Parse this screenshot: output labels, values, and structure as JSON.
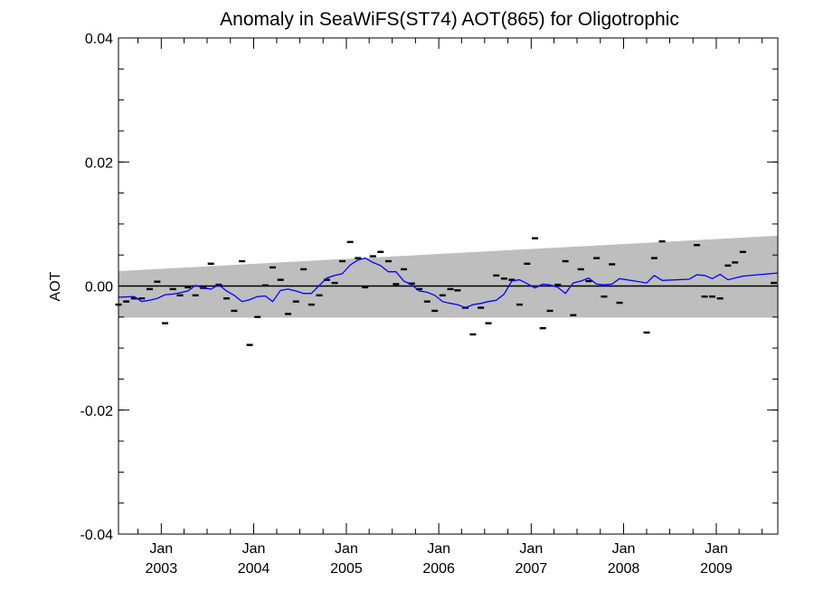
{
  "chart_data": {
    "type": "scatter",
    "title": "Anomaly in SeaWiFS(ST74) AOT(865) for Oligotrophic",
    "xlabel": "",
    "ylabel": "AOT",
    "ylim": [
      -0.04,
      0.04
    ],
    "yticks": [
      "0.04",
      "0.02",
      "0.00",
      "-0.02",
      "-0.04"
    ],
    "xlim": [
      "2002-07-16",
      "2009-09-01"
    ],
    "xticks": [
      {
        "date": "2003-01-01",
        "month": "Jan",
        "year": "2003"
      },
      {
        "date": "2004-01-01",
        "month": "Jan",
        "year": "2004"
      },
      {
        "date": "2005-01-01",
        "month": "Jan",
        "year": "2005"
      },
      {
        "date": "2006-01-01",
        "month": "Jan",
        "year": "2006"
      },
      {
        "date": "2007-01-01",
        "month": "Jan",
        "year": "2007"
      },
      {
        "date": "2008-01-01",
        "month": "Jan",
        "year": "2008"
      },
      {
        "date": "2009-01-01",
        "month": "Jan",
        "year": "2009"
      }
    ],
    "grid": false,
    "reference_line": 0.0,
    "band": {
      "color": "#bebebe",
      "x": [
        "2002-07-16",
        "2009-09-01"
      ],
      "upper": [
        0.0024,
        0.0081
      ],
      "lower": [
        -0.0051,
        -0.0051
      ]
    },
    "series": [
      {
        "color": "#000000",
        "marker": "dash",
        "points": [
          {
            "x": "2002-07-16",
            "y": -0.003
          },
          {
            "x": "2002-08-16",
            "y": -0.0025
          },
          {
            "x": "2002-09-16",
            "y": -0.002
          },
          {
            "x": "2002-10-16",
            "y": -0.002
          },
          {
            "x": "2002-11-16",
            "y": -0.0005
          },
          {
            "x": "2002-12-16",
            "y": 0.0007
          },
          {
            "x": "2003-01-16",
            "y": -0.006
          },
          {
            "x": "2003-02-16",
            "y": -0.0005
          },
          {
            "x": "2003-03-16",
            "y": -0.0015
          },
          {
            "x": "2003-04-16",
            "y": -0.0002
          },
          {
            "x": "2003-05-16",
            "y": -0.0015
          },
          {
            "x": "2003-06-16",
            "y": -0.0003
          },
          {
            "x": "2003-07-16",
            "y": 0.0036
          },
          {
            "x": "2003-08-16",
            "y": 0.0002
          },
          {
            "x": "2003-09-16",
            "y": -0.002
          },
          {
            "x": "2003-10-16",
            "y": -0.004
          },
          {
            "x": "2003-11-16",
            "y": 0.004
          },
          {
            "x": "2003-12-16",
            "y": -0.0095
          },
          {
            "x": "2004-01-16",
            "y": -0.005
          },
          {
            "x": "2004-02-16",
            "y": 0.0001
          },
          {
            "x": "2004-03-16",
            "y": 0.003
          },
          {
            "x": "2004-04-16",
            "y": 0.001
          },
          {
            "x": "2004-05-16",
            "y": -0.0045
          },
          {
            "x": "2004-06-16",
            "y": -0.0025
          },
          {
            "x": "2004-07-16",
            "y": 0.0027
          },
          {
            "x": "2004-08-16",
            "y": -0.003
          },
          {
            "x": "2004-09-16",
            "y": -0.0015
          },
          {
            "x": "2004-10-16",
            "y": 0.001
          },
          {
            "x": "2004-11-16",
            "y": 0.0005
          },
          {
            "x": "2004-12-16",
            "y": 0.004
          },
          {
            "x": "2005-01-16",
            "y": 0.0071
          },
          {
            "x": "2005-02-16",
            "y": 0.0045
          },
          {
            "x": "2005-03-16",
            "y": -0.0002
          },
          {
            "x": "2005-04-16",
            "y": 0.0048
          },
          {
            "x": "2005-05-16",
            "y": 0.0055
          },
          {
            "x": "2005-06-16",
            "y": 0.004
          },
          {
            "x": "2005-07-16",
            "y": 0.0003
          },
          {
            "x": "2005-08-16",
            "y": 0.0027
          },
          {
            "x": "2005-09-16",
            "y": 0.0004
          },
          {
            "x": "2005-10-16",
            "y": -0.0005
          },
          {
            "x": "2005-11-16",
            "y": -0.0025
          },
          {
            "x": "2005-12-16",
            "y": -0.004
          },
          {
            "x": "2006-01-16",
            "y": -0.0015
          },
          {
            "x": "2006-02-16",
            "y": -0.0005
          },
          {
            "x": "2006-03-16",
            "y": -0.0007
          },
          {
            "x": "2006-04-16",
            "y": -0.0035
          },
          {
            "x": "2006-05-16",
            "y": -0.0078
          },
          {
            "x": "2006-06-16",
            "y": -0.0035
          },
          {
            "x": "2006-07-16",
            "y": -0.006
          },
          {
            "x": "2006-08-16",
            "y": 0.0017
          },
          {
            "x": "2006-09-16",
            "y": 0.0012
          },
          {
            "x": "2006-10-16",
            "y": 0.001
          },
          {
            "x": "2006-11-16",
            "y": -0.003
          },
          {
            "x": "2006-12-16",
            "y": 0.0036
          },
          {
            "x": "2007-01-16",
            "y": 0.0077
          },
          {
            "x": "2007-02-16",
            "y": -0.0068
          },
          {
            "x": "2007-03-16",
            "y": -0.004
          },
          {
            "x": "2007-04-16",
            "y": 0.0002
          },
          {
            "x": "2007-05-16",
            "y": 0.004
          },
          {
            "x": "2007-06-16",
            "y": -0.0047
          },
          {
            "x": "2007-07-16",
            "y": 0.0027
          },
          {
            "x": "2007-08-16",
            "y": 0.0008
          },
          {
            "x": "2007-09-16",
            "y": 0.0045
          },
          {
            "x": "2007-10-16",
            "y": -0.0017
          },
          {
            "x": "2007-11-16",
            "y": 0.0035
          },
          {
            "x": "2007-12-16",
            "y": -0.0027
          },
          {
            "x": "2008-04-01",
            "y": -0.0075
          },
          {
            "x": "2008-05-01",
            "y": 0.0045
          },
          {
            "x": "2008-06-01",
            "y": 0.0072
          },
          {
            "x": "2008-10-16",
            "y": 0.0066
          },
          {
            "x": "2008-11-16",
            "y": -0.0017
          },
          {
            "x": "2008-12-16",
            "y": -0.0017
          },
          {
            "x": "2009-01-16",
            "y": -0.002
          },
          {
            "x": "2009-02-16",
            "y": 0.0033
          },
          {
            "x": "2009-03-16",
            "y": 0.0038
          },
          {
            "x": "2009-04-16",
            "y": 0.0055
          },
          {
            "x": "2009-08-16",
            "y": 0.0005
          }
        ]
      },
      {
        "color": "#0000ff",
        "marker": "line",
        "points": [
          {
            "x": "2002-07-16",
            "y": -0.0018
          },
          {
            "x": "2002-09-16",
            "y": -0.0017
          },
          {
            "x": "2002-10-16",
            "y": -0.0025
          },
          {
            "x": "2002-11-16",
            "y": -0.0023
          },
          {
            "x": "2002-12-16",
            "y": -0.002
          },
          {
            "x": "2003-01-16",
            "y": -0.0014
          },
          {
            "x": "2003-02-16",
            "y": -0.0013
          },
          {
            "x": "2003-03-16",
            "y": -0.0011
          },
          {
            "x": "2003-04-16",
            "y": -0.0008
          },
          {
            "x": "2003-05-16",
            "y": 0.0001
          },
          {
            "x": "2003-06-16",
            "y": -0.0003
          },
          {
            "x": "2003-07-16",
            "y": -0.0005
          },
          {
            "x": "2003-08-16",
            "y": 0.0002
          },
          {
            "x": "2003-09-16",
            "y": -0.0008
          },
          {
            "x": "2003-10-16",
            "y": -0.0015
          },
          {
            "x": "2003-11-16",
            "y": -0.0025
          },
          {
            "x": "2003-12-16",
            "y": -0.0022
          },
          {
            "x": "2004-01-16",
            "y": -0.0017
          },
          {
            "x": "2004-02-16",
            "y": -0.0016
          },
          {
            "x": "2004-03-16",
            "y": -0.0025
          },
          {
            "x": "2004-04-16",
            "y": -0.0007
          },
          {
            "x": "2004-05-16",
            "y": -0.0005
          },
          {
            "x": "2004-06-16",
            "y": -0.0008
          },
          {
            "x": "2004-07-16",
            "y": -0.0012
          },
          {
            "x": "2004-08-16",
            "y": -0.0012
          },
          {
            "x": "2004-09-16",
            "y": 0.0001
          },
          {
            "x": "2004-10-16",
            "y": 0.0013
          },
          {
            "x": "2004-11-16",
            "y": 0.0017
          },
          {
            "x": "2004-12-16",
            "y": 0.002
          },
          {
            "x": "2005-01-16",
            "y": 0.0034
          },
          {
            "x": "2005-02-16",
            "y": 0.0042
          },
          {
            "x": "2005-03-16",
            "y": 0.0045
          },
          {
            "x": "2005-04-16",
            "y": 0.0038
          },
          {
            "x": "2005-05-16",
            "y": 0.0033
          },
          {
            "x": "2005-06-16",
            "y": 0.0023
          },
          {
            "x": "2005-07-16",
            "y": 0.0023
          },
          {
            "x": "2005-08-16",
            "y": 0.0008
          },
          {
            "x": "2005-09-16",
            "y": 0.0002
          },
          {
            "x": "2005-10-16",
            "y": -0.0008
          },
          {
            "x": "2005-11-16",
            "y": -0.001
          },
          {
            "x": "2005-12-16",
            "y": -0.0015
          },
          {
            "x": "2006-01-16",
            "y": -0.0025
          },
          {
            "x": "2006-02-16",
            "y": -0.0028
          },
          {
            "x": "2006-03-16",
            "y": -0.003
          },
          {
            "x": "2006-04-16",
            "y": -0.0035
          },
          {
            "x": "2006-05-16",
            "y": -0.003
          },
          {
            "x": "2006-06-16",
            "y": -0.0028
          },
          {
            "x": "2006-07-16",
            "y": -0.0025
          },
          {
            "x": "2006-08-16",
            "y": -0.0023
          },
          {
            "x": "2006-09-16",
            "y": -0.0013
          },
          {
            "x": "2006-10-16",
            "y": 0.0008
          },
          {
            "x": "2006-11-16",
            "y": 0.001
          },
          {
            "x": "2006-12-16",
            "y": 0.0004
          },
          {
            "x": "2007-01-16",
            "y": -0.0003
          },
          {
            "x": "2007-02-16",
            "y": 0.0003
          },
          {
            "x": "2007-03-16",
            "y": 0.0002
          },
          {
            "x": "2007-04-16",
            "y": -0.0002
          },
          {
            "x": "2007-05-16",
            "y": -0.0012
          },
          {
            "x": "2007-06-16",
            "y": 0.0005
          },
          {
            "x": "2007-07-16",
            "y": 0.0008
          },
          {
            "x": "2007-08-16",
            "y": 0.0013
          },
          {
            "x": "2007-09-16",
            "y": 0.0003
          },
          {
            "x": "2007-10-16",
            "y": 0.0002
          },
          {
            "x": "2007-11-16",
            "y": 0.0003
          },
          {
            "x": "2007-12-16",
            "y": 0.0012
          },
          {
            "x": "2008-04-01",
            "y": 0.0005
          },
          {
            "x": "2008-05-01",
            "y": 0.0017
          },
          {
            "x": "2008-06-01",
            "y": 0.0009
          },
          {
            "x": "2008-09-16",
            "y": 0.0011
          },
          {
            "x": "2008-10-16",
            "y": 0.0018
          },
          {
            "x": "2008-11-16",
            "y": 0.0017
          },
          {
            "x": "2008-12-16",
            "y": 0.0012
          },
          {
            "x": "2009-01-16",
            "y": 0.0019
          },
          {
            "x": "2009-02-16",
            "y": 0.001
          },
          {
            "x": "2009-03-16",
            "y": 0.0013
          },
          {
            "x": "2009-04-16",
            "y": 0.0016
          },
          {
            "x": "2009-09-01",
            "y": 0.0021
          }
        ]
      }
    ]
  }
}
